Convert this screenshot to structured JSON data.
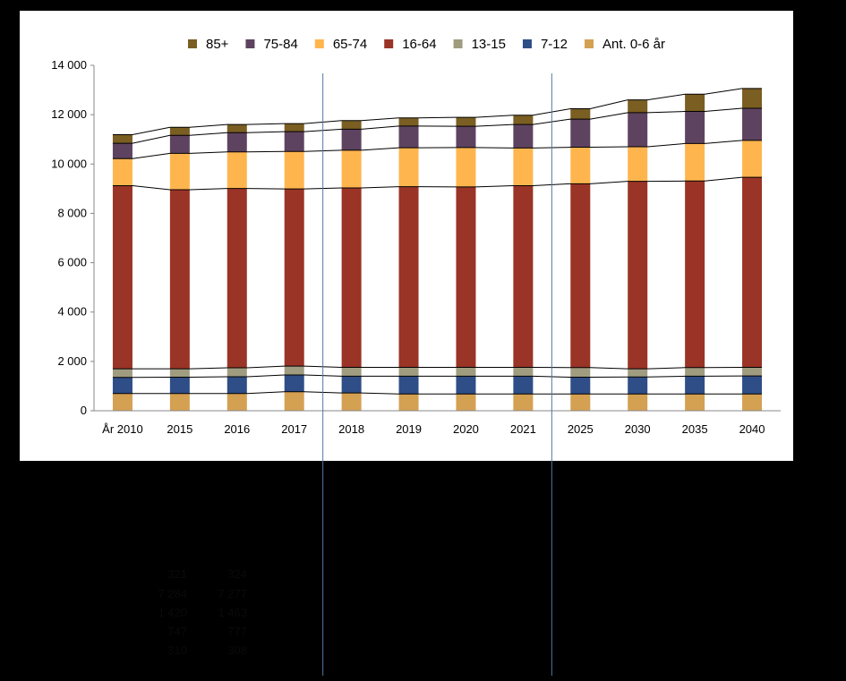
{
  "chart_data": {
    "type": "bar",
    "stacked": true,
    "title": "",
    "xlabel": "",
    "ylabel": "",
    "ylim": [
      0,
      14000
    ],
    "y_ticks": [
      "0",
      "2 000",
      "4 000",
      "6 000",
      "8 000",
      "10 000",
      "12 000",
      "14 000"
    ],
    "legend_position": "top",
    "grid": false,
    "categories": [
      "År 2010",
      "2015",
      "2016",
      "2017",
      "2018",
      "2019",
      "2020",
      "2021",
      "2025",
      "2030",
      "2035",
      "2040"
    ],
    "series": [
      {
        "name": "Ant. 0-6 år",
        "color": "#D4A052",
        "values": [
          700,
          700,
          700,
          770,
          720,
          680,
          680,
          680,
          680,
          680,
          680,
          680
        ]
      },
      {
        "name": "7-12",
        "color": "#2F4E87",
        "values": [
          650,
          660,
          680,
          680,
          680,
          720,
          720,
          720,
          680,
          690,
          720,
          730
        ]
      },
      {
        "name": "13-15",
        "color": "#A09C80",
        "values": [
          350,
          340,
          360,
          360,
          360,
          360,
          360,
          360,
          390,
          330,
          350,
          350
        ]
      },
      {
        "name": "16-64",
        "color": "#9A3426",
        "values": [
          7420,
          7260,
          7270,
          7180,
          7270,
          7320,
          7310,
          7360,
          7450,
          7600,
          7560,
          7700
        ]
      },
      {
        "name": "65-74",
        "color": "#FFB54E",
        "values": [
          1100,
          1470,
          1480,
          1520,
          1530,
          1580,
          1600,
          1530,
          1480,
          1400,
          1520,
          1500
        ]
      },
      {
        "name": "75-84",
        "color": "#5E4360",
        "values": [
          620,
          730,
          780,
          800,
          850,
          880,
          860,
          950,
          1140,
          1380,
          1300,
          1300
        ]
      },
      {
        "name": "85+",
        "color": "#7A5E22",
        "values": [
          350,
          330,
          330,
          330,
          350,
          330,
          360,
          380,
          420,
          520,
          700,
          800
        ]
      }
    ]
  },
  "background_numbers": {
    "col1": [
      "321",
      "7 284",
      "1 420",
      "747",
      "310"
    ],
    "col2": [
      "324",
      "7 277",
      "1 463",
      "777",
      "308"
    ]
  },
  "colors": {
    "page_background": "#000000",
    "plot_background": "#FFFFFF",
    "divider_line": "#4F7AA6",
    "trend_line": "#000000"
  }
}
